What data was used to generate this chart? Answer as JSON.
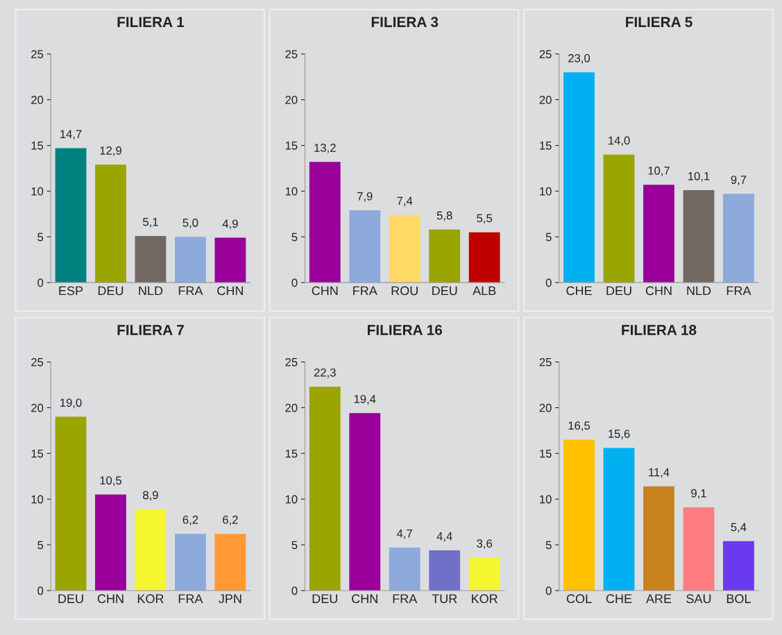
{
  "chart_data": [
    {
      "type": "bar",
      "title": "FILIERA 1",
      "categories": [
        "ESP",
        "DEU",
        "NLD",
        "FRA",
        "CHN"
      ],
      "values": [
        14.7,
        12.9,
        5.1,
        5.0,
        4.9
      ],
      "value_labels": [
        "14,7",
        "12,9",
        "5,1",
        "5,0",
        "4,9"
      ],
      "colors": [
        "#00807f",
        "#9aa500",
        "#736763",
        "#8eaadc",
        "#990099"
      ],
      "ylim": [
        0,
        25
      ],
      "yticks": [
        0,
        5,
        10,
        15,
        20,
        25
      ],
      "grid": false,
      "legend": false
    },
    {
      "type": "bar",
      "title": "FILIERA 3",
      "categories": [
        "CHN",
        "FRA",
        "ROU",
        "DEU",
        "ALB"
      ],
      "values": [
        13.2,
        7.9,
        7.4,
        5.8,
        5.5
      ],
      "value_labels": [
        "13,2",
        "7,9",
        "7,4",
        "5,8",
        "5,5"
      ],
      "colors": [
        "#990099",
        "#8eaadc",
        "#ffd966",
        "#9aa500",
        "#c00000"
      ],
      "ylim": [
        0,
        25
      ],
      "yticks": [
        0,
        5,
        10,
        15,
        20,
        25
      ],
      "grid": false,
      "legend": false
    },
    {
      "type": "bar",
      "title": "FILIERA 5",
      "categories": [
        "CHE",
        "DEU",
        "CHN",
        "NLD",
        "FRA"
      ],
      "values": [
        23.0,
        14.0,
        10.7,
        10.1,
        9.7
      ],
      "value_labels": [
        "23,0",
        "14,0",
        "10,7",
        "10,1",
        "9,7"
      ],
      "colors": [
        "#00b0f0",
        "#9aa500",
        "#990099",
        "#736763",
        "#8eaadc"
      ],
      "ylim": [
        0,
        25
      ],
      "yticks": [
        0,
        5,
        10,
        15,
        20,
        25
      ],
      "grid": false,
      "legend": false
    },
    {
      "type": "bar",
      "title": "FILIERA 7",
      "categories": [
        "DEU",
        "CHN",
        "KOR",
        "FRA",
        "JPN"
      ],
      "values": [
        19.0,
        10.5,
        8.9,
        6.2,
        6.2
      ],
      "value_labels": [
        "19,0",
        "10,5",
        "8,9",
        "6,2",
        "6,2"
      ],
      "colors": [
        "#9aa500",
        "#990099",
        "#f5f530",
        "#8eaadc",
        "#ff9933"
      ],
      "ylim": [
        0,
        25
      ],
      "yticks": [
        0,
        5,
        10,
        15,
        20,
        25
      ],
      "grid": false,
      "legend": false
    },
    {
      "type": "bar",
      "title": "FILIERA 16",
      "categories": [
        "DEU",
        "CHN",
        "FRA",
        "TUR",
        "KOR"
      ],
      "values": [
        22.3,
        19.4,
        4.7,
        4.4,
        3.6
      ],
      "value_labels": [
        "22,3",
        "19,4",
        "4,7",
        "4,4",
        "3,6"
      ],
      "colors": [
        "#9aa500",
        "#990099",
        "#8eaadc",
        "#7070c8",
        "#f5f530"
      ],
      "ylim": [
        0,
        25
      ],
      "yticks": [
        0,
        5,
        10,
        15,
        20,
        25
      ],
      "grid": false,
      "legend": false
    },
    {
      "type": "bar",
      "title": "FILIERA 18",
      "categories": [
        "COL",
        "CHE",
        "ARE",
        "SAU",
        "BOL"
      ],
      "values": [
        16.5,
        15.6,
        11.4,
        9.1,
        5.4
      ],
      "value_labels": [
        "16,5",
        "15,6",
        "11,4",
        "9,1",
        "5,4"
      ],
      "colors": [
        "#ffc000",
        "#00b0f0",
        "#c8821e",
        "#ff7c80",
        "#6a3af0"
      ],
      "ylim": [
        0,
        25
      ],
      "yticks": [
        0,
        5,
        10,
        15,
        20,
        25
      ],
      "grid": false,
      "legend": false
    }
  ]
}
